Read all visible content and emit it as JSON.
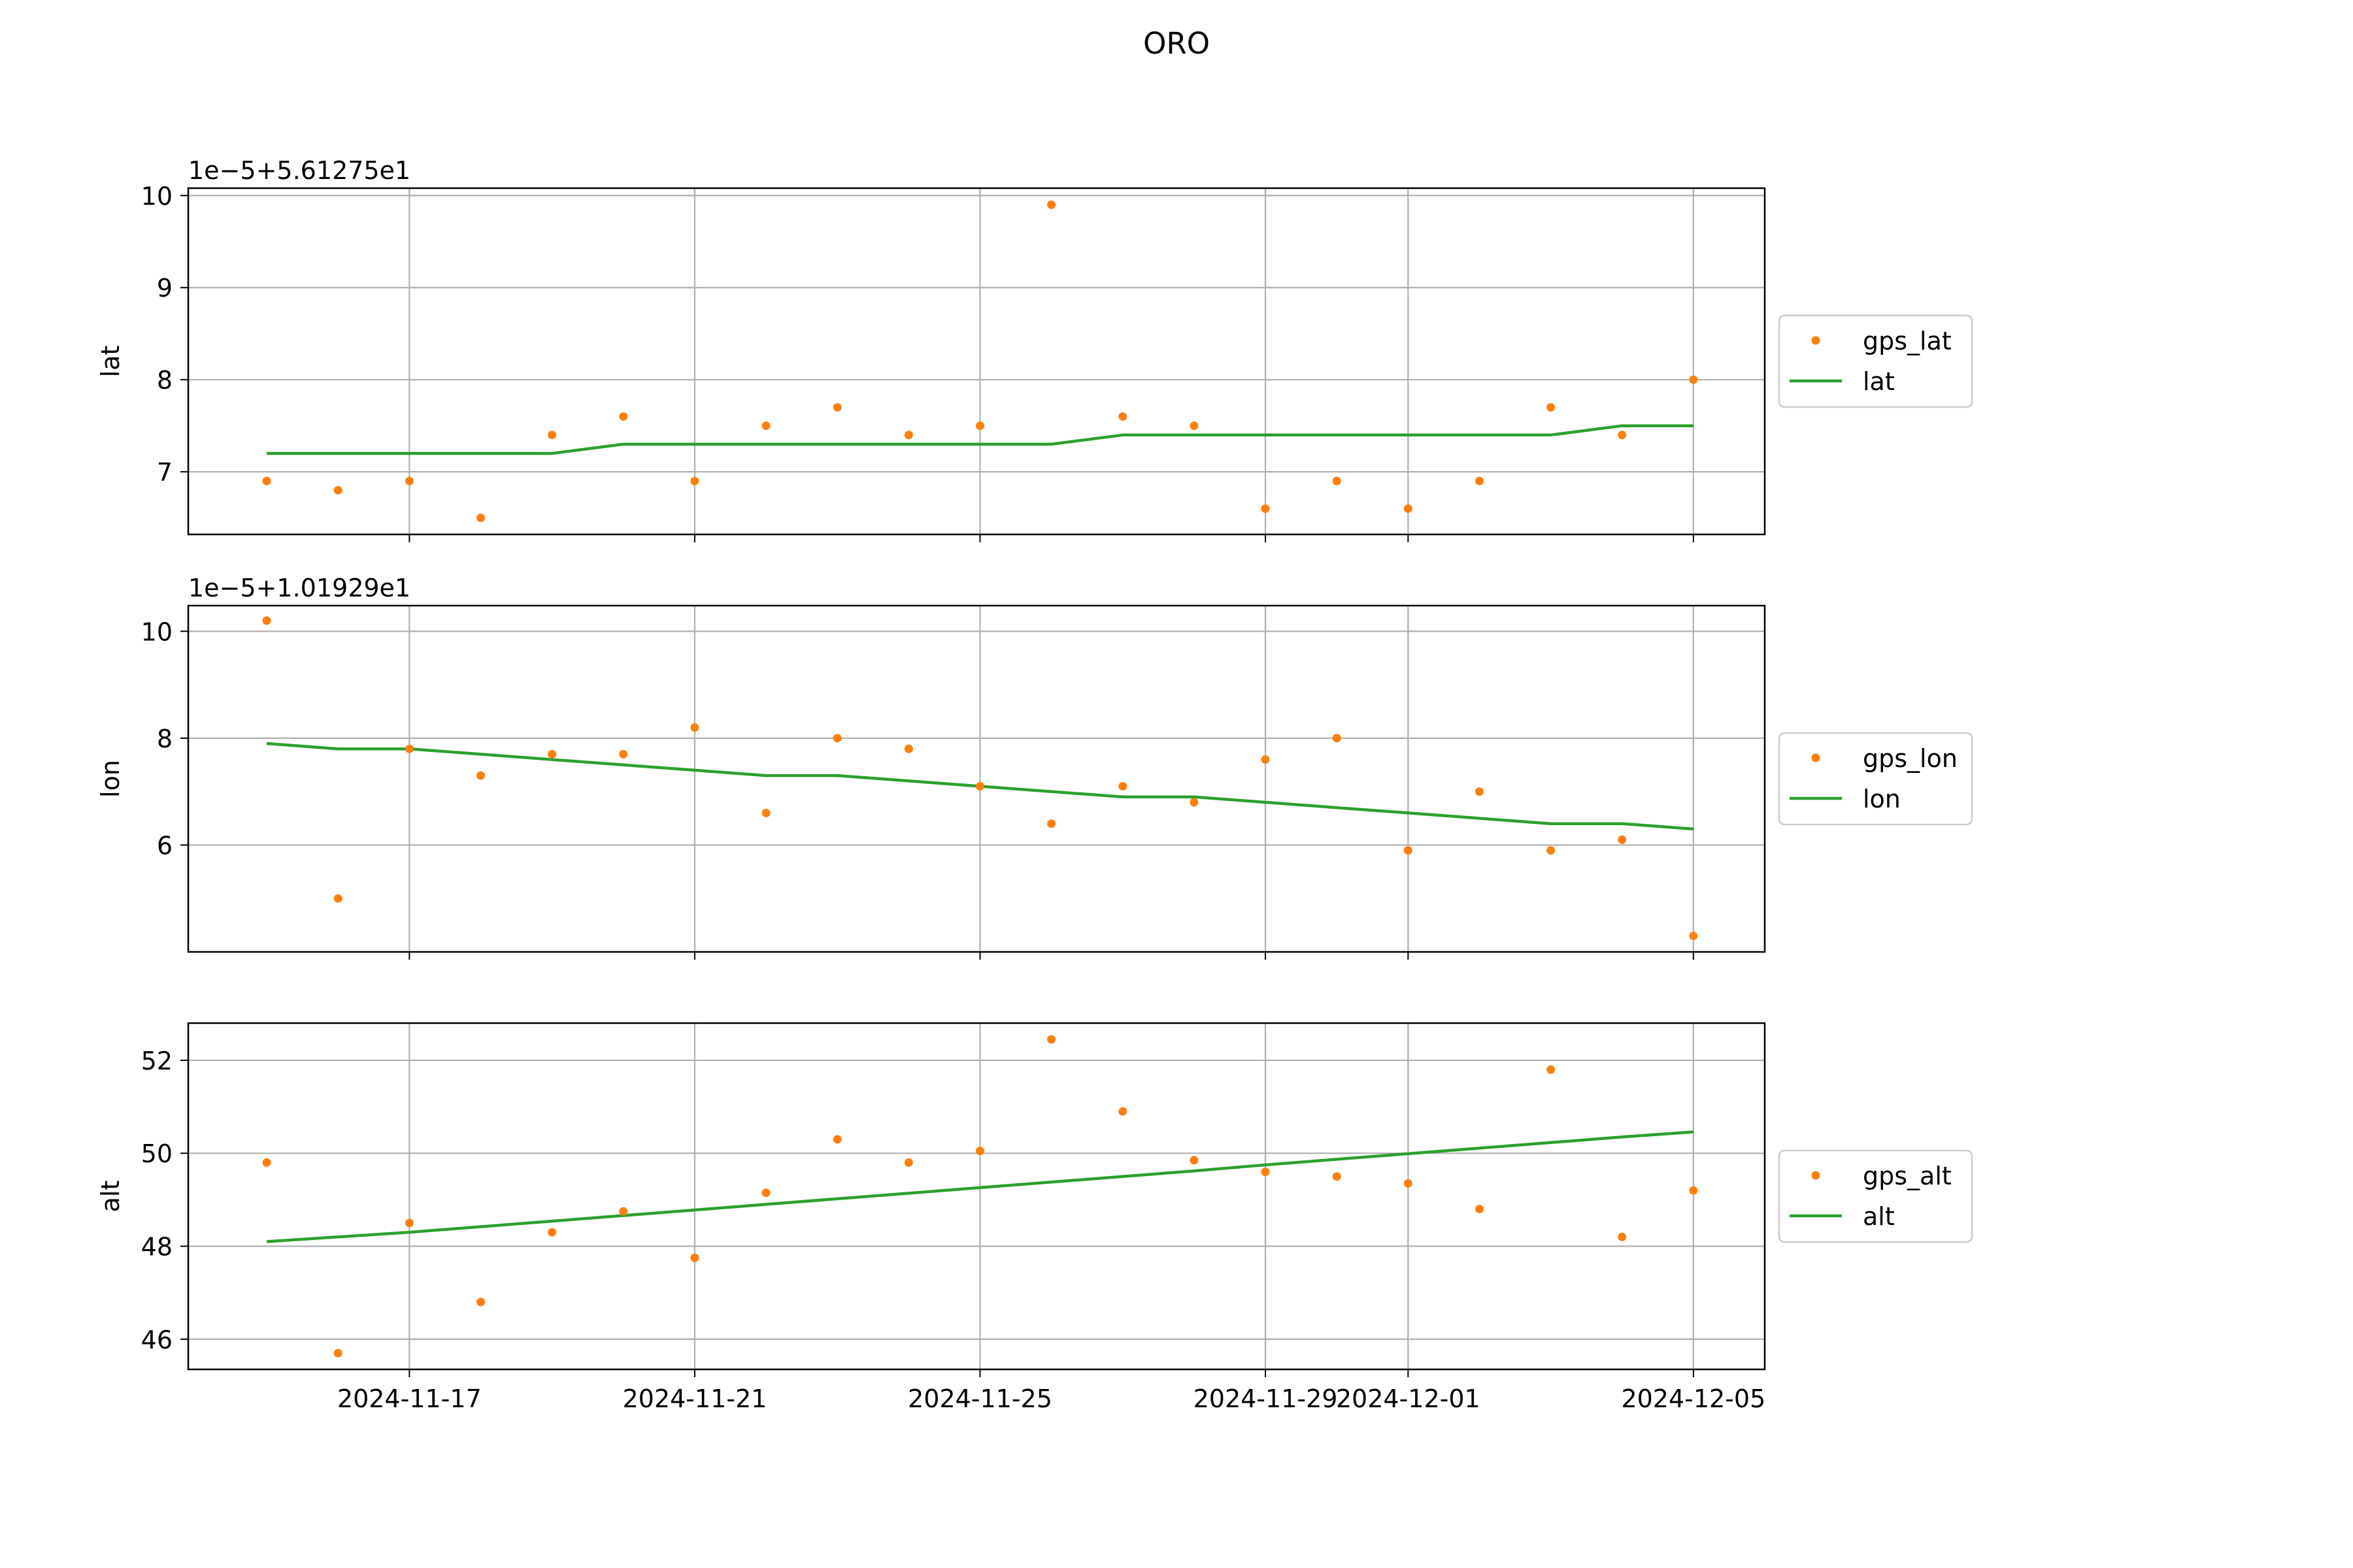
{
  "figure": {
    "title": "ORO",
    "colors": {
      "points": "#ff7f0e",
      "line": "#2ca02c",
      "grid": "#b0b0b0",
      "axes": "#000000"
    }
  },
  "chart_data": [
    {
      "type": "line",
      "ylabel": "lat",
      "offset_label": "1e−5+5.61275e1",
      "ylim": [
        6.32,
        10.08
      ],
      "yticks": [
        7,
        8,
        9,
        10
      ],
      "show_xticklabels": false,
      "legend_position": "right",
      "x": [
        "2024-11-15",
        "2024-11-16",
        "2024-11-17",
        "2024-11-18",
        "2024-11-19",
        "2024-11-20",
        "2024-11-21",
        "2024-11-22",
        "2024-11-23",
        "2024-11-24",
        "2024-11-25",
        "2024-11-26",
        "2024-11-27",
        "2024-11-28",
        "2024-11-29",
        "2024-11-30",
        "2024-12-01",
        "2024-12-02",
        "2024-12-03",
        "2024-12-04",
        "2024-12-05"
      ],
      "series": [
        {
          "name": "gps_lat",
          "type": "scatter",
          "values": [
            6.9,
            6.8,
            6.9,
            6.5,
            7.4,
            7.6,
            6.9,
            7.5,
            7.7,
            7.4,
            7.5,
            9.9,
            7.6,
            7.5,
            6.6,
            6.9,
            6.6,
            6.9,
            7.7,
            7.4,
            8.0
          ]
        },
        {
          "name": "lat",
          "type": "line",
          "values": [
            7.2,
            7.2,
            7.2,
            7.2,
            7.2,
            7.3,
            7.3,
            7.3,
            7.3,
            7.3,
            7.3,
            7.3,
            7.4,
            7.4,
            7.4,
            7.4,
            7.4,
            7.4,
            7.4,
            7.5,
            7.5
          ]
        }
      ]
    },
    {
      "type": "line",
      "ylabel": "lon",
      "offset_label": "1e−5+1.01929e1",
      "ylim": [
        4.0,
        10.48
      ],
      "yticks": [
        6,
        8,
        10
      ],
      "show_xticklabels": false,
      "legend_position": "right",
      "x": [
        "2024-11-15",
        "2024-11-16",
        "2024-11-17",
        "2024-11-18",
        "2024-11-19",
        "2024-11-20",
        "2024-11-21",
        "2024-11-22",
        "2024-11-23",
        "2024-11-24",
        "2024-11-25",
        "2024-11-26",
        "2024-11-27",
        "2024-11-28",
        "2024-11-29",
        "2024-11-30",
        "2024-12-01",
        "2024-12-02",
        "2024-12-03",
        "2024-12-04",
        "2024-12-05"
      ],
      "series": [
        {
          "name": "gps_lon",
          "type": "scatter",
          "values": [
            10.2,
            5.0,
            7.8,
            7.3,
            7.7,
            7.7,
            8.2,
            6.6,
            8.0,
            7.8,
            7.1,
            6.4,
            7.1,
            6.8,
            7.6,
            8.0,
            5.9,
            7.0,
            5.9,
            6.1,
            4.3
          ]
        },
        {
          "name": "lon",
          "type": "line",
          "values": [
            7.9,
            7.8,
            7.8,
            7.7,
            7.6,
            7.5,
            7.4,
            7.3,
            7.3,
            7.2,
            7.1,
            7.0,
            6.9,
            6.9,
            6.8,
            6.7,
            6.6,
            6.5,
            6.4,
            6.4,
            6.3
          ]
        }
      ]
    },
    {
      "type": "line",
      "ylabel": "alt",
      "offset_label": "",
      "ylim": [
        45.35,
        52.8
      ],
      "yticks": [
        46,
        48,
        50,
        52
      ],
      "show_xticklabels": true,
      "xticks": [
        "2024-11-17",
        "2024-11-21",
        "2024-11-25",
        "2024-11-29",
        "2024-12-01",
        "2024-12-05"
      ],
      "legend_position": "right",
      "x": [
        "2024-11-15",
        "2024-11-16",
        "2024-11-17",
        "2024-11-18",
        "2024-11-19",
        "2024-11-20",
        "2024-11-21",
        "2024-11-22",
        "2024-11-23",
        "2024-11-24",
        "2024-11-25",
        "2024-11-26",
        "2024-11-27",
        "2024-11-28",
        "2024-11-29",
        "2024-11-30",
        "2024-12-01",
        "2024-12-02",
        "2024-12-03",
        "2024-12-04",
        "2024-12-05"
      ],
      "series": [
        {
          "name": "gps_alt",
          "type": "scatter",
          "values": [
            49.8,
            45.7,
            48.5,
            46.8,
            48.3,
            48.75,
            47.75,
            49.15,
            50.3,
            49.8,
            50.05,
            52.45,
            50.9,
            49.85,
            49.6,
            49.5,
            49.35,
            48.8,
            51.8,
            48.2,
            49.2
          ]
        },
        {
          "name": "alt",
          "type": "line",
          "values": [
            48.1,
            48.2,
            48.3,
            48.42,
            48.54,
            48.66,
            48.78,
            48.9,
            49.02,
            49.14,
            49.26,
            49.38,
            49.5,
            49.62,
            49.75,
            49.87,
            49.99,
            50.11,
            50.23,
            50.35,
            50.46
          ]
        }
      ]
    }
  ]
}
